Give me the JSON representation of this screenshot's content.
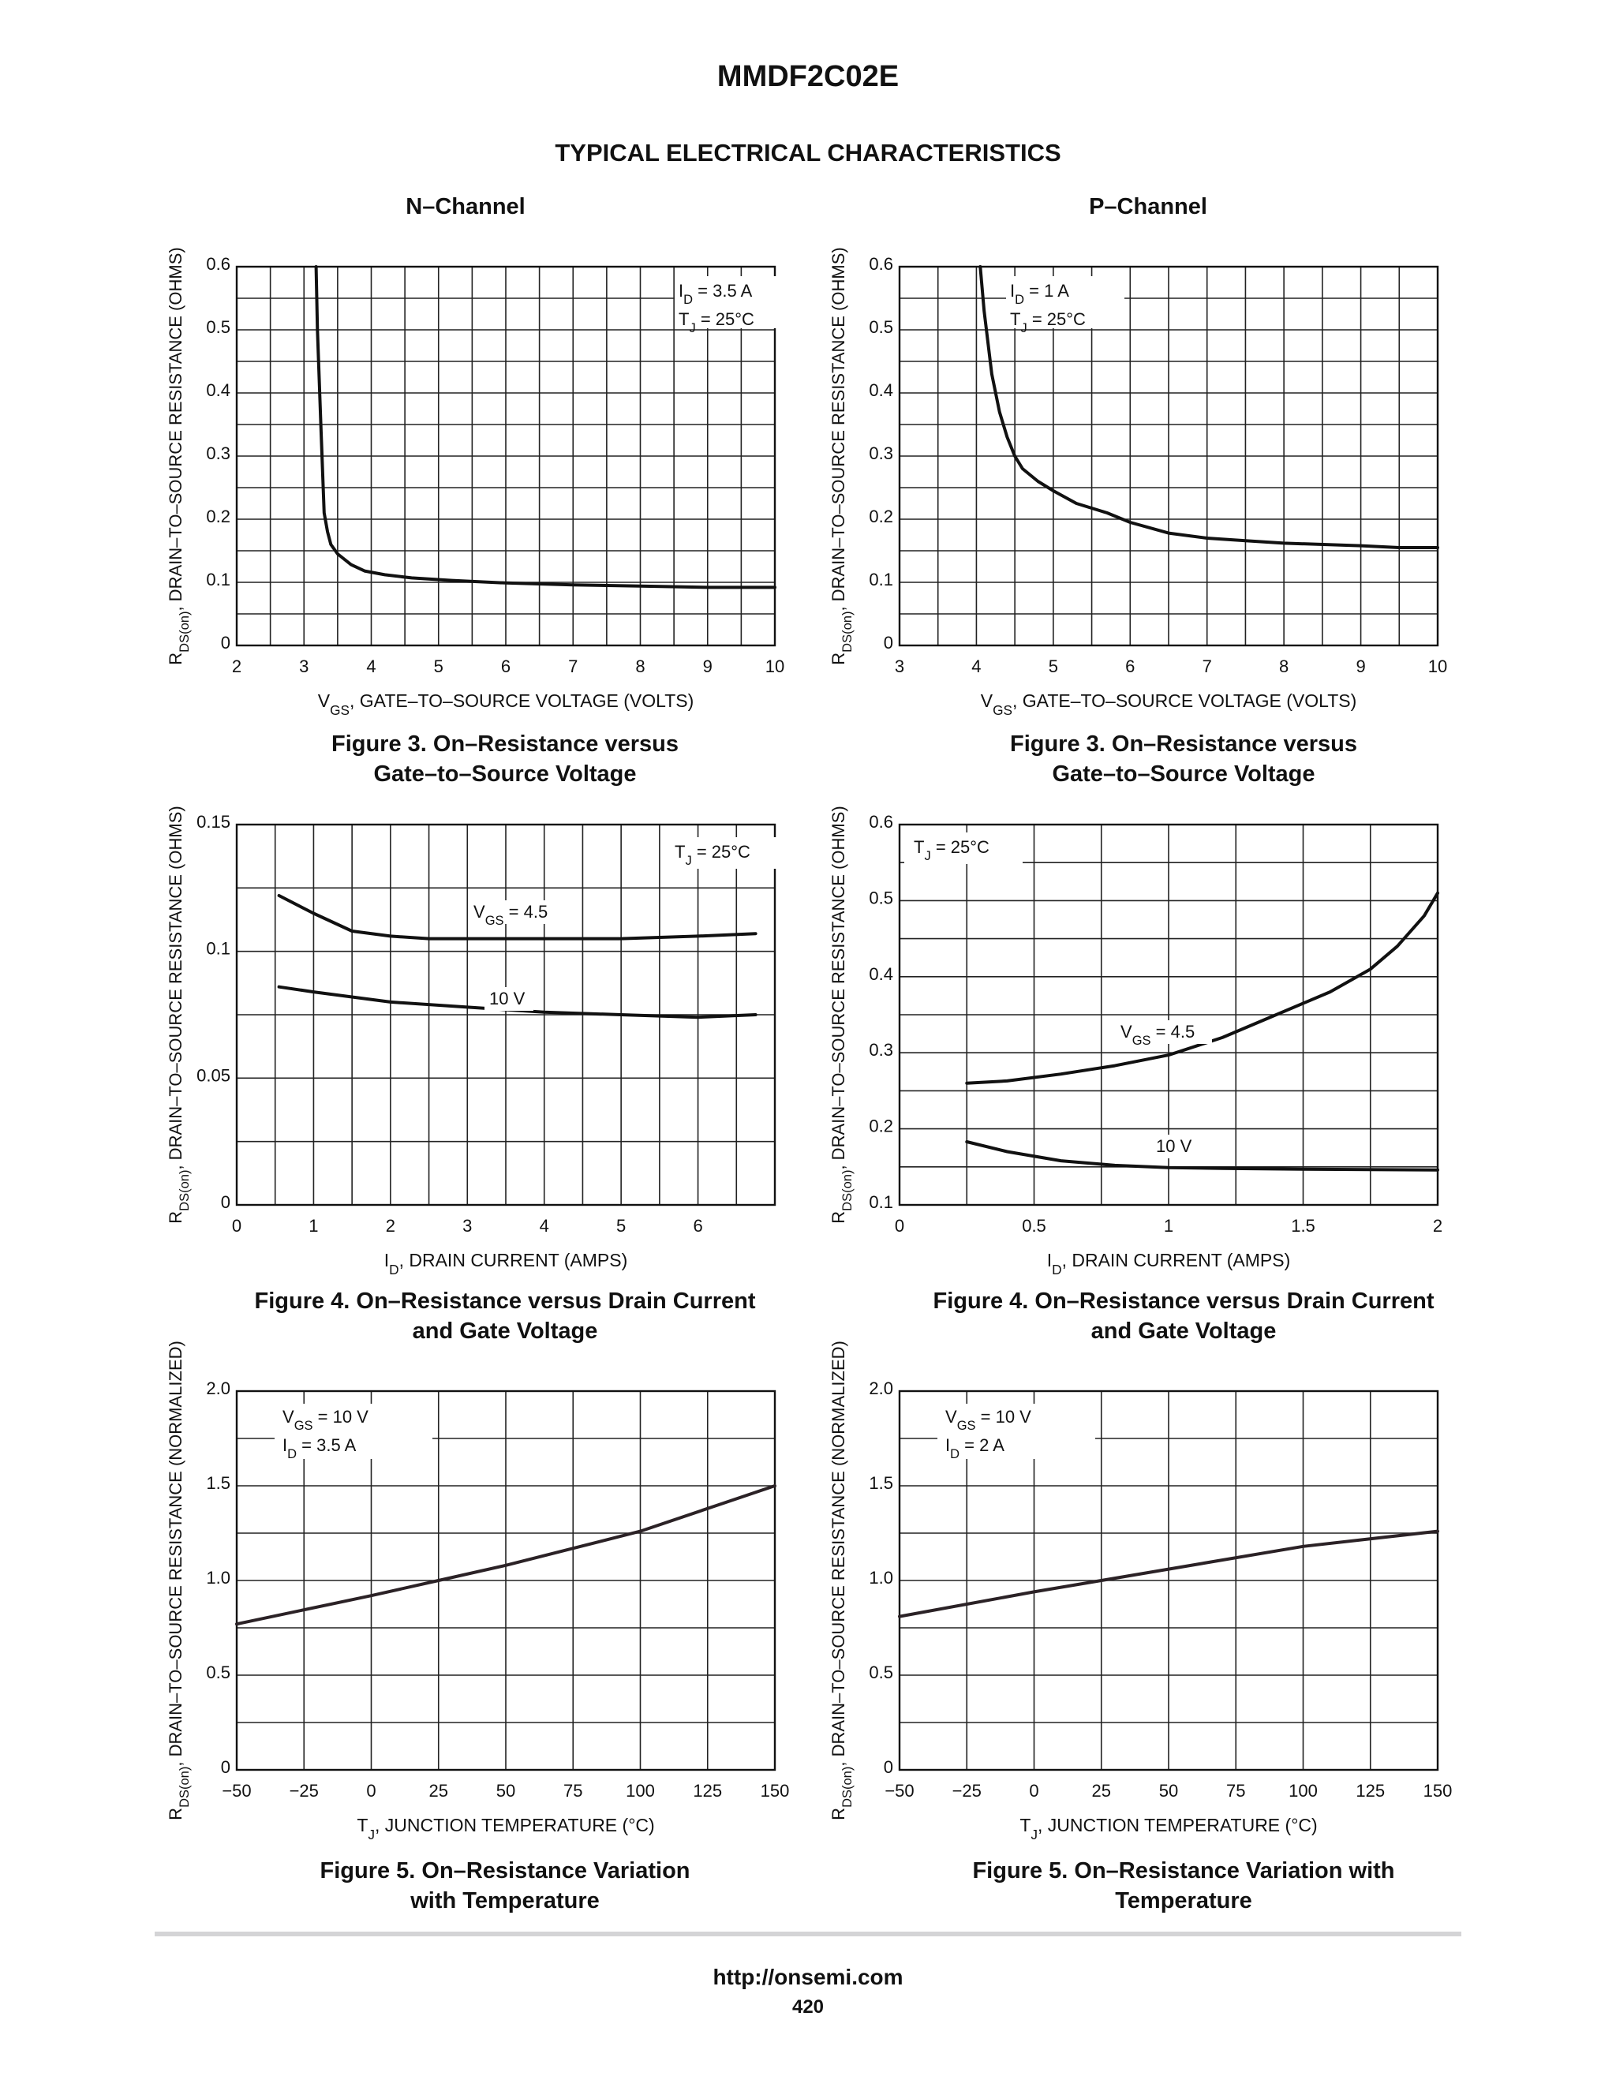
{
  "document": {
    "title": "MMDF2C02E",
    "section_title": "TYPICAL ELECTRICAL CHARACTERISTICS",
    "columns": [
      "N–Channel",
      "P–Channel"
    ],
    "footer_url": "http://onsemi.com",
    "page_number": "420"
  },
  "captions": [
    "Figure 3. On–Resistance versus\nGate–to–Source Voltage",
    "Figure 3. On–Resistance versus\nGate–to–Source Voltage",
    "Figure 4. On–Resistance versus Drain Current\nand Gate Voltage",
    "Figure 4. On–Resistance versus Drain Current\nand Gate Voltage",
    "Figure 5. On–Resistance Variation\nwith Temperature",
    "Figure 5. On–Resistance Variation with\nTemperature"
  ],
  "chart_data": [
    {
      "type": "line",
      "xlabel": "VGS, GATE–TO–SOURCE VOLTAGE (VOLTS)",
      "ylabel": "RDS(on), DRAIN–TO–SOURCE RESISTANCE (OHMS)",
      "xlim": [
        2,
        10
      ],
      "ylim": [
        0,
        0.6
      ],
      "x_ticks": [
        "2",
        "3",
        "4",
        "5",
        "6",
        "7",
        "8",
        "9",
        "10"
      ],
      "y_ticks": [
        "0",
        "0.1",
        "0.2",
        "0.3",
        "0.4",
        "0.5",
        "0.6"
      ],
      "x_grid_step": 0.5,
      "y_grid_step": 0.05,
      "grid": true,
      "annotations": [
        "ID = 3.5 A",
        "TJ = 25°C"
      ],
      "series": [
        {
          "x": [
            3.18,
            3.2,
            3.25,
            3.3,
            3.35,
            3.4,
            3.5,
            3.7,
            3.9,
            4.2,
            4.6,
            5.2,
            6.0,
            7.0,
            8.0,
            9.0,
            10.0
          ],
          "y": [
            0.6,
            0.5,
            0.35,
            0.21,
            0.18,
            0.16,
            0.145,
            0.128,
            0.118,
            0.112,
            0.107,
            0.103,
            0.099,
            0.096,
            0.094,
            0.092,
            0.092
          ]
        }
      ]
    },
    {
      "type": "line",
      "xlabel": "VGS, GATE–TO–SOURCE VOLTAGE (VOLTS)",
      "ylabel": "RDS(on), DRAIN–TO–SOURCE RESISTANCE (OHMS)",
      "xlim": [
        3,
        10
      ],
      "ylim": [
        0,
        0.6
      ],
      "x_ticks": [
        "3",
        "4",
        "5",
        "6",
        "7",
        "8",
        "9",
        "10"
      ],
      "y_ticks": [
        "0",
        "0.1",
        "0.2",
        "0.3",
        "0.4",
        "0.5",
        "0.6"
      ],
      "x_grid_step": 0.5,
      "y_grid_step": 0.05,
      "grid": true,
      "annotations": [
        "ID = 1 A",
        "TJ = 25°C"
      ],
      "series": [
        {
          "x": [
            4.05,
            4.1,
            4.2,
            4.3,
            4.4,
            4.5,
            4.6,
            4.8,
            5.0,
            5.3,
            5.7,
            6.0,
            6.5,
            7.0,
            7.5,
            8.0,
            9.0,
            9.5,
            10.0
          ],
          "y": [
            0.6,
            0.53,
            0.43,
            0.37,
            0.33,
            0.3,
            0.28,
            0.26,
            0.245,
            0.225,
            0.21,
            0.195,
            0.178,
            0.17,
            0.166,
            0.162,
            0.158,
            0.155,
            0.155
          ]
        }
      ]
    },
    {
      "type": "line",
      "xlabel": "ID, DRAIN CURRENT (AMPS)",
      "ylabel": "RDS(on), DRAIN–TO–SOURCE RESISTANCE (OHMS)",
      "xlim": [
        0,
        7
      ],
      "ylim": [
        0,
        0.15
      ],
      "x_ticks": [
        "0",
        "1",
        "2",
        "3",
        "4",
        "5",
        "6"
      ],
      "y_ticks": [
        "0",
        "0.05",
        "0.1",
        "0.15"
      ],
      "x_grid_step": 0.5,
      "y_grid_step": 0.025,
      "grid": true,
      "annotations": [
        "TJ = 25°C"
      ],
      "series": [
        {
          "name": "VGS = 4.5",
          "x": [
            0.55,
            1.0,
            1.5,
            2.0,
            2.5,
            3.0,
            4.0,
            5.0,
            6.0,
            6.75
          ],
          "y": [
            0.122,
            0.115,
            0.108,
            0.106,
            0.105,
            0.105,
            0.105,
            0.105,
            0.106,
            0.107
          ]
        },
        {
          "name": "10 V",
          "x": [
            0.55,
            1.0,
            1.5,
            2.0,
            3.0,
            4.0,
            5.0,
            6.0,
            6.75
          ],
          "y": [
            0.086,
            0.084,
            0.082,
            0.08,
            0.078,
            0.076,
            0.075,
            0.074,
            0.075
          ]
        }
      ]
    },
    {
      "type": "line",
      "xlabel": "ID, DRAIN CURRENT (AMPS)",
      "ylabel": "RDS(on), DRAIN–TO–SOURCE RESISTANCE (OHMS)",
      "xlim": [
        0,
        2
      ],
      "ylim": [
        0.1,
        0.6
      ],
      "x_ticks": [
        "0",
        "0.5",
        "1",
        "1.5",
        "2"
      ],
      "y_ticks": [
        "0.1",
        "0.2",
        "0.3",
        "0.4",
        "0.5",
        "0.6"
      ],
      "x_grid_step": 0.25,
      "y_grid_step": 0.05,
      "grid": true,
      "annotations": [
        "TJ = 25°C"
      ],
      "series": [
        {
          "name": "VGS = 4.5",
          "x": [
            0.25,
            0.4,
            0.6,
            0.8,
            1.0,
            1.2,
            1.4,
            1.6,
            1.75,
            1.85,
            1.95,
            2.0
          ],
          "y": [
            0.26,
            0.263,
            0.272,
            0.283,
            0.297,
            0.32,
            0.35,
            0.38,
            0.41,
            0.44,
            0.48,
            0.51
          ]
        },
        {
          "name": "10 V",
          "x": [
            0.25,
            0.4,
            0.6,
            0.8,
            1.0,
            1.2,
            1.5,
            2.0
          ],
          "y": [
            0.183,
            0.17,
            0.158,
            0.152,
            0.149,
            0.148,
            0.147,
            0.146
          ]
        }
      ]
    },
    {
      "type": "line",
      "xlabel": "TJ, JUNCTION TEMPERATURE (°C)",
      "ylabel": "RDS(on), DRAIN–TO–SOURCE RESISTANCE (NORMALIZED)",
      "xlim": [
        -50,
        150
      ],
      "ylim": [
        0,
        2.0
      ],
      "x_ticks": [
        "−50",
        "−25",
        "0",
        "25",
        "50",
        "75",
        "100",
        "125",
        "150"
      ],
      "y_ticks": [
        "0",
        "0.5",
        "1.0",
        "1.5",
        "2.0"
      ],
      "x_grid_step": 25,
      "y_grid_step": 0.25,
      "grid": true,
      "annotations": [
        "VGS = 10 V",
        "ID = 3.5 A"
      ],
      "series": [
        {
          "x": [
            -50,
            0,
            25,
            50,
            100,
            150
          ],
          "y": [
            0.77,
            0.92,
            1.0,
            1.08,
            1.26,
            1.5
          ]
        }
      ]
    },
    {
      "type": "line",
      "xlabel": "TJ, JUNCTION TEMPERATURE (°C)",
      "ylabel": "RDS(on), DRAIN–TO–SOURCE RESISTANCE (NORMALIZED)",
      "xlim": [
        -50,
        150
      ],
      "ylim": [
        0,
        2.0
      ],
      "x_ticks": [
        "−50",
        "−25",
        "0",
        "25",
        "50",
        "75",
        "100",
        "125",
        "150"
      ],
      "y_ticks": [
        "0",
        "0.5",
        "1.0",
        "1.5",
        "2.0"
      ],
      "x_grid_step": 25,
      "y_grid_step": 0.25,
      "grid": true,
      "annotations": [
        "VGS = 10 V",
        "ID = 2 A"
      ],
      "series": [
        {
          "x": [
            -50,
            0,
            25,
            50,
            100,
            150
          ],
          "y": [
            0.81,
            0.94,
            1.0,
            1.06,
            1.18,
            1.26
          ]
        }
      ]
    }
  ]
}
